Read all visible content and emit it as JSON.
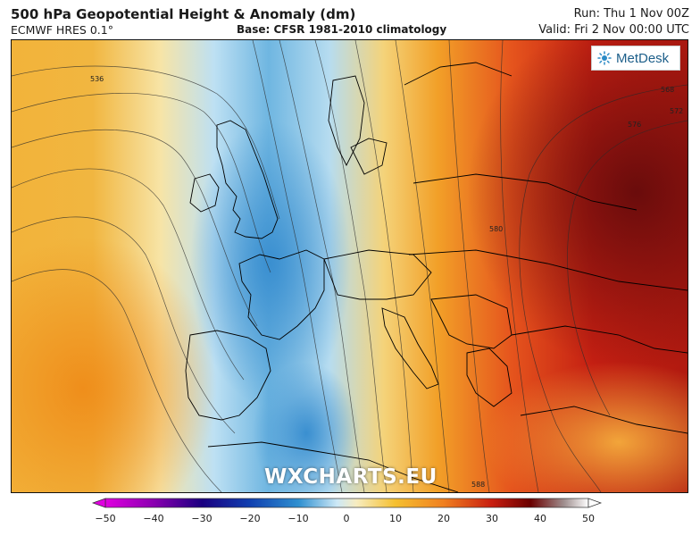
{
  "header": {
    "title": "500 hPa Geopotential Height & Anomaly (dm)",
    "model": "ECMWF HRES 0.1°",
    "base": "Base: CFSR 1981-2010 climatology",
    "run": "Run: Thu 1 Nov 00Z",
    "valid": "Valid: Fri 2 Nov 00:00 UTC"
  },
  "logo": {
    "text": "MetDesk"
  },
  "watermark": "WXCHARTS.EU",
  "contours": {
    "labels": [
      "536",
      "568",
      "572",
      "576",
      "580",
      "588"
    ]
  },
  "colorbar": {
    "ticks": [
      "−50",
      "−40",
      "−30",
      "−20",
      "−10",
      "0",
      "10",
      "20",
      "30",
      "40",
      "50"
    ],
    "range": [
      -50,
      50
    ],
    "colors": [
      "#f000f0",
      "#8a00b0",
      "#1a0080",
      "#1040b0",
      "#2f90d0",
      "#a8d4ee",
      "#f5f0d0",
      "#f5c030",
      "#f08020",
      "#d02010",
      "#800000",
      "#401010",
      "#ffffff"
    ]
  }
}
